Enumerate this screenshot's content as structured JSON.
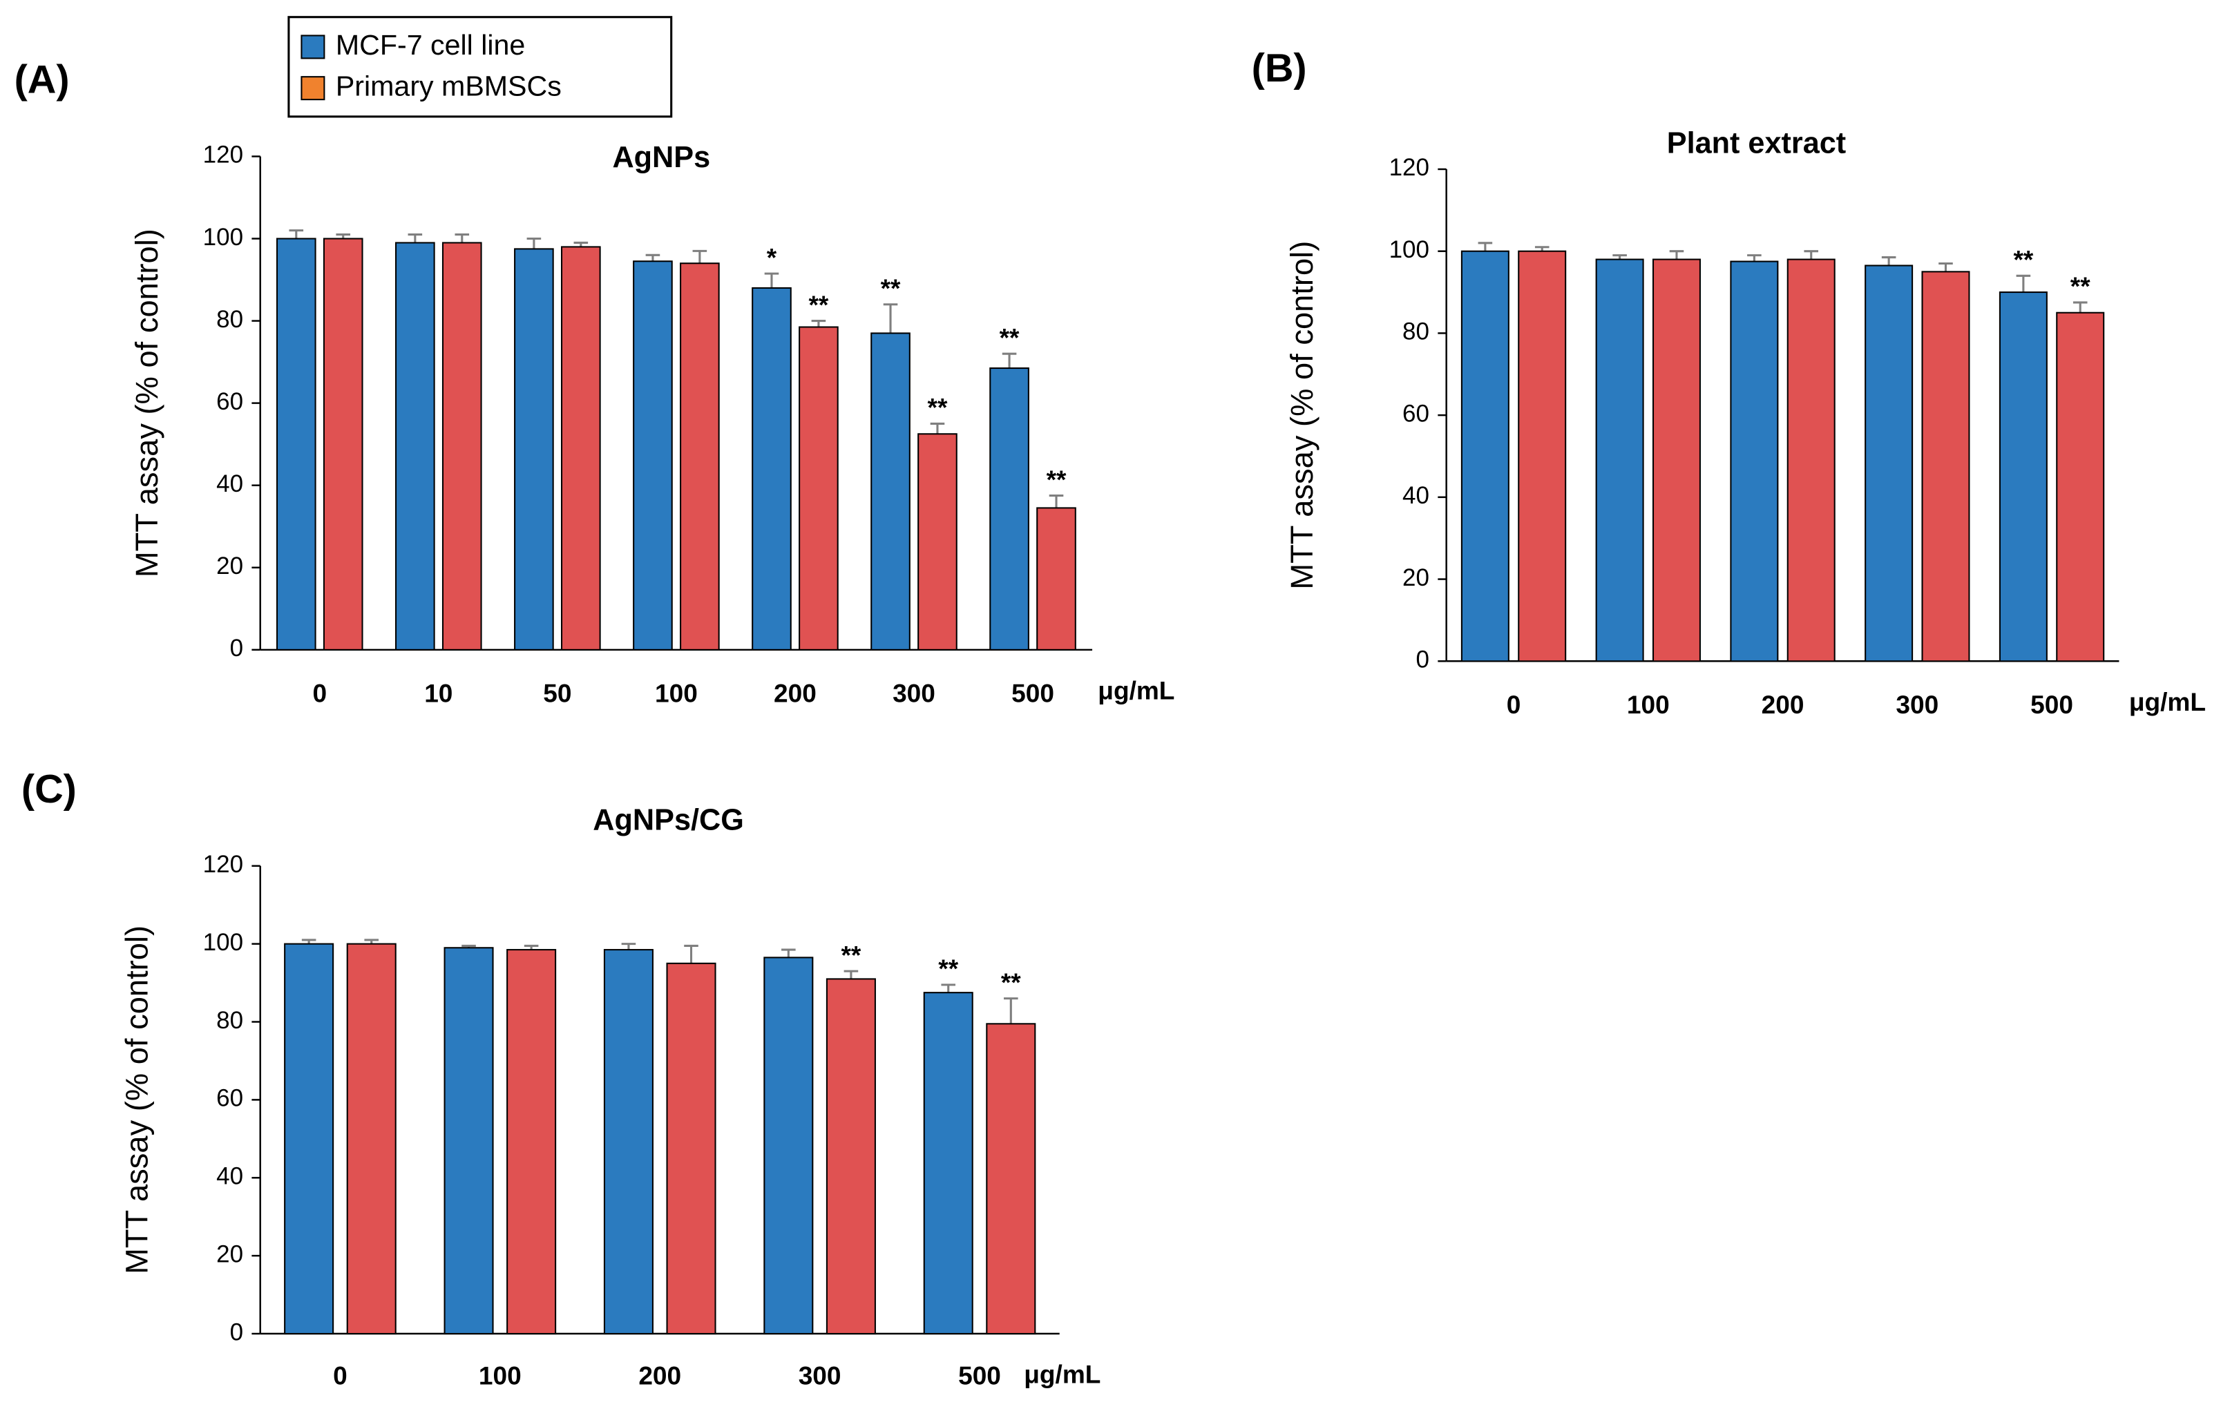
{
  "chart_data": [
    {
      "type": "bar",
      "panel_label": "(A)",
      "title": "AgNPs",
      "y_label": "MTT assay (% of control)",
      "x_unit": "μg/mL",
      "categories": [
        "0",
        "10",
        "50",
        "100",
        "200",
        "300",
        "500"
      ],
      "ylim": [
        0,
        120
      ],
      "yticks": [
        0,
        20,
        40,
        60,
        80,
        100,
        120
      ],
      "series": [
        {
          "name": "MCF-7 cell line",
          "color": "#2b7bbf",
          "legend_color": "#2b7bbf",
          "values": [
            100,
            99,
            97.5,
            94.5,
            88,
            77,
            68.5
          ],
          "errors": [
            2,
            2,
            2.5,
            1.5,
            3.5,
            7,
            3.5
          ],
          "annotations": [
            null,
            null,
            null,
            null,
            "*",
            "**",
            "**"
          ]
        },
        {
          "name": "Primary mBMSCs",
          "color": "#e05252",
          "legend_color": "#f0822e",
          "values": [
            100,
            99,
            98,
            94,
            78.5,
            52.5,
            34.5
          ],
          "errors": [
            1,
            2,
            1,
            3,
            1.5,
            2.5,
            3
          ],
          "annotations": [
            null,
            null,
            null,
            null,
            "**",
            "**",
            "**"
          ]
        }
      ]
    },
    {
      "type": "bar",
      "panel_label": "(B)",
      "title": "Plant extract",
      "y_label": "MTT assay (% of control)",
      "x_unit": "μg/mL",
      "categories": [
        "0",
        "100",
        "200",
        "300",
        "500"
      ],
      "ylim": [
        0,
        120
      ],
      "yticks": [
        0,
        20,
        40,
        60,
        80,
        100,
        120
      ],
      "series": [
        {
          "color": "#2b7bbf",
          "values": [
            100,
            98,
            97.5,
            96.5,
            90
          ],
          "errors": [
            2,
            1,
            1.5,
            2,
            4
          ],
          "annotations": [
            null,
            null,
            null,
            null,
            "**"
          ]
        },
        {
          "color": "#e05252",
          "values": [
            100,
            98,
            98,
            95,
            85
          ],
          "errors": [
            1,
            2,
            2,
            2,
            2.5
          ],
          "annotations": [
            null,
            null,
            null,
            null,
            "**"
          ]
        }
      ]
    },
    {
      "type": "bar",
      "panel_label": "(C)",
      "title": "AgNPs/CG",
      "y_label": "MTT assay (% of control)",
      "x_unit": "μg/mL",
      "categories": [
        "0",
        "100",
        "200",
        "300",
        "500"
      ],
      "ylim": [
        0,
        120
      ],
      "yticks": [
        0,
        20,
        40,
        60,
        80,
        100,
        120
      ],
      "series": [
        {
          "color": "#2b7bbf",
          "values": [
            100,
            99,
            98.5,
            96.5,
            87.5
          ],
          "errors": [
            1,
            0.5,
            1.5,
            2,
            2
          ],
          "annotations": [
            null,
            null,
            null,
            null,
            "**"
          ]
        },
        {
          "color": "#e05252",
          "values": [
            100,
            98.5,
            95,
            91,
            79.5
          ],
          "errors": [
            1,
            1,
            4.5,
            2,
            6.5
          ],
          "annotations": [
            null,
            null,
            null,
            "**",
            "**"
          ]
        }
      ]
    }
  ]
}
